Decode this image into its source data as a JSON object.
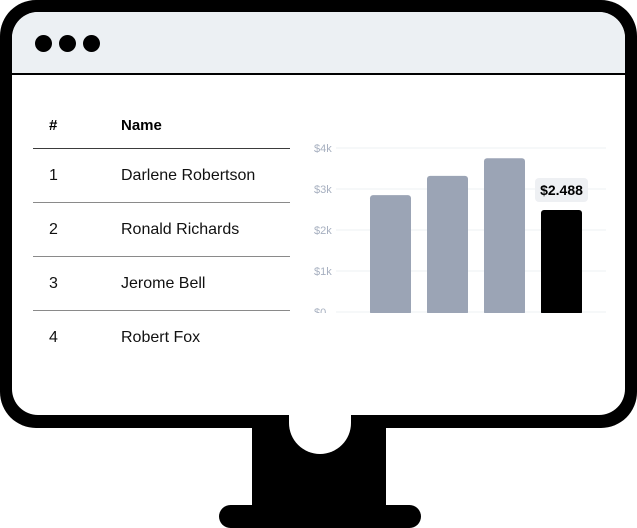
{
  "table": {
    "headers": {
      "num": "#",
      "name": "Name"
    },
    "rows": [
      {
        "num": "1",
        "name": "Darlene Robertson"
      },
      {
        "num": "2",
        "name": "Ronald Richards"
      },
      {
        "num": "3",
        "name": "Jerome Bell"
      },
      {
        "num": "4",
        "name": "Robert Fox"
      }
    ]
  },
  "chart_data": {
    "type": "bar",
    "ytick_labels": [
      "$0",
      "$1k",
      "$2k",
      "$3k",
      "$4k"
    ],
    "ytick_values": [
      0,
      1000,
      2000,
      3000,
      4000
    ],
    "ylim": [
      0,
      4000
    ],
    "grid": true,
    "values": [
      2850,
      3320,
      3750,
      2488
    ],
    "highlight_index": 3,
    "highlight_label": "$2.488",
    "colors": {
      "bar": "#9ba4b5",
      "highlight": "#000000",
      "grid": "#eef0f3"
    }
  }
}
